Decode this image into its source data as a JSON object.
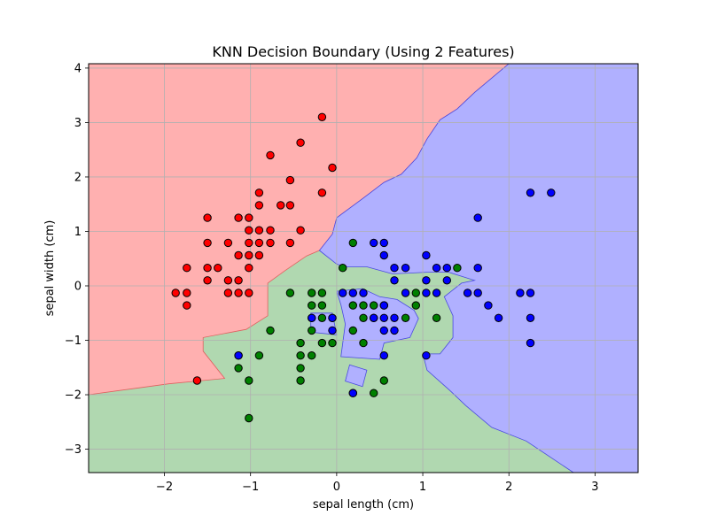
{
  "chart_data": {
    "type": "scatter",
    "title": "KNN Decision Boundary (Using 2 Features)",
    "xlabel": "sepal length (cm)",
    "ylabel": "sepal width (cm)",
    "xlim": [
      -2.88,
      3.5
    ],
    "ylim": [
      -3.43,
      4.08
    ],
    "xticks": [
      -2,
      -1,
      0,
      1,
      2,
      3
    ],
    "yticks": [
      -3,
      -2,
      -1,
      0,
      1,
      2,
      3,
      4
    ],
    "grid": true,
    "region_colors": {
      "red": "#ffb0b0",
      "green": "#b0d8b0",
      "blue": "#b0b0ff"
    },
    "point_colors": {
      "red": "#ff0000",
      "green": "#008000",
      "blue": "#0000ff"
    },
    "regions": {
      "red": [
        [
          -2.88,
          4.08
        ],
        [
          2.0,
          4.08
        ],
        [
          1.6,
          3.55
        ],
        [
          1.4,
          3.25
        ],
        [
          1.2,
          3.05
        ],
        [
          1.05,
          2.7
        ],
        [
          0.93,
          2.35
        ],
        [
          0.75,
          2.05
        ],
        [
          0.55,
          1.9
        ],
        [
          0.3,
          1.6
        ],
        [
          0.0,
          1.25
        ],
        [
          -0.05,
          0.95
        ],
        [
          -0.2,
          0.65
        ],
        [
          -0.35,
          0.55
        ],
        [
          -0.6,
          0.28
        ],
        [
          -0.8,
          0.05
        ],
        [
          -0.8,
          -0.55
        ],
        [
          -1.05,
          -0.8
        ],
        [
          -1.55,
          -0.95
        ],
        [
          -1.55,
          -1.2
        ],
        [
          -1.3,
          -1.7
        ],
        [
          -1.95,
          -1.8
        ],
        [
          -2.88,
          -2.0
        ]
      ],
      "blue": [
        [
          2.0,
          4.08
        ],
        [
          3.5,
          4.08
        ],
        [
          3.5,
          -3.43
        ],
        [
          2.75,
          -3.43
        ],
        [
          2.2,
          -2.85
        ],
        [
          1.8,
          -2.6
        ],
        [
          1.5,
          -2.2
        ],
        [
          1.3,
          -1.9
        ],
        [
          1.05,
          -1.55
        ],
        [
          1.0,
          -1.25
        ],
        [
          1.2,
          -1.25
        ],
        [
          1.35,
          -0.95
        ],
        [
          1.35,
          -0.55
        ],
        [
          1.25,
          -0.2
        ],
        [
          1.45,
          0.05
        ],
        [
          1.6,
          0.1
        ],
        [
          1.3,
          0.25
        ],
        [
          1.05,
          0.25
        ],
        [
          0.65,
          0.22
        ],
        [
          0.35,
          0.35
        ],
        [
          0.1,
          0.35
        ],
        [
          0.0,
          0.4
        ],
        [
          -0.2,
          0.65
        ],
        [
          -0.05,
          0.95
        ],
        [
          0.0,
          1.25
        ],
        [
          0.3,
          1.6
        ],
        [
          0.55,
          1.9
        ],
        [
          0.75,
          2.05
        ],
        [
          0.93,
          2.35
        ],
        [
          1.05,
          2.7
        ],
        [
          1.2,
          3.05
        ],
        [
          1.4,
          3.25
        ],
        [
          1.6,
          3.55
        ]
      ],
      "blue_islands": [
        [
          [
            0.0,
            -0.1
          ],
          [
            0.3,
            -0.05
          ],
          [
            0.5,
            -0.2
          ],
          [
            0.7,
            -0.25
          ],
          [
            0.9,
            -0.45
          ],
          [
            0.95,
            -0.6
          ],
          [
            0.85,
            -0.95
          ],
          [
            0.55,
            -1.05
          ],
          [
            0.5,
            -1.35
          ],
          [
            0.05,
            -1.3
          ],
          [
            0.1,
            -0.7
          ],
          [
            0.05,
            -0.35
          ]
        ],
        [
          [
            -0.3,
            -0.5
          ],
          [
            -0.05,
            -0.5
          ],
          [
            0.0,
            -0.9
          ],
          [
            -0.3,
            -0.85
          ]
        ],
        [
          [
            0.15,
            -1.45
          ],
          [
            0.35,
            -1.55
          ],
          [
            0.3,
            -1.85
          ],
          [
            0.1,
            -1.75
          ]
        ]
      ]
    },
    "series": [
      {
        "color": "red",
        "points": [
          [
            -0.17,
            3.1
          ],
          [
            -0.42,
            2.63
          ],
          [
            -0.05,
            2.17
          ],
          [
            -0.77,
            2.4
          ],
          [
            -0.54,
            1.94
          ],
          [
            -0.9,
            1.71
          ],
          [
            -0.17,
            1.71
          ],
          [
            -1.5,
            1.25
          ],
          [
            -1.14,
            1.25
          ],
          [
            -1.02,
            1.25
          ],
          [
            -0.9,
            1.48
          ],
          [
            -0.65,
            1.48
          ],
          [
            -0.54,
            1.48
          ],
          [
            -1.02,
            1.02
          ],
          [
            -0.9,
            1.02
          ],
          [
            -0.77,
            1.02
          ],
          [
            -0.42,
            1.02
          ],
          [
            -1.5,
            0.79
          ],
          [
            -1.26,
            0.79
          ],
          [
            -1.02,
            0.79
          ],
          [
            -0.9,
            0.79
          ],
          [
            -0.77,
            0.79
          ],
          [
            -0.54,
            0.79
          ],
          [
            -1.14,
            0.56
          ],
          [
            -1.02,
            0.56
          ],
          [
            -0.9,
            0.56
          ],
          [
            -1.74,
            0.33
          ],
          [
            -1.5,
            0.33
          ],
          [
            -1.38,
            0.33
          ],
          [
            -1.02,
            0.33
          ],
          [
            -1.5,
            0.1
          ],
          [
            -1.26,
            0.1
          ],
          [
            -1.14,
            0.1
          ],
          [
            -1.87,
            -0.13
          ],
          [
            -1.74,
            -0.13
          ],
          [
            -1.26,
            -0.13
          ],
          [
            -1.14,
            -0.13
          ],
          [
            -1.02,
            -0.13
          ],
          [
            -1.74,
            -0.36
          ],
          [
            -1.62,
            -1.74
          ]
        ]
      },
      {
        "color": "green",
        "points": [
          [
            0.19,
            0.79
          ],
          [
            0.07,
            0.33
          ],
          [
            1.4,
            0.33
          ],
          [
            -0.54,
            -0.13
          ],
          [
            -0.29,
            -0.13
          ],
          [
            -0.17,
            -0.13
          ],
          [
            0.19,
            -0.36
          ],
          [
            0.31,
            -0.36
          ],
          [
            0.43,
            -0.36
          ],
          [
            0.55,
            -0.36
          ],
          [
            0.92,
            -0.13
          ],
          [
            0.92,
            -0.36
          ],
          [
            -0.29,
            -0.36
          ],
          [
            -0.17,
            -0.36
          ],
          [
            -0.17,
            -0.59
          ],
          [
            0.31,
            -0.59
          ],
          [
            0.43,
            -0.59
          ],
          [
            0.8,
            -0.59
          ],
          [
            1.16,
            -0.59
          ],
          [
            -0.29,
            -0.59
          ],
          [
            -0.05,
            -0.59
          ],
          [
            -0.77,
            -0.82
          ],
          [
            -0.29,
            -0.82
          ],
          [
            0.19,
            -0.82
          ],
          [
            -0.42,
            -1.05
          ],
          [
            -0.17,
            -1.05
          ],
          [
            -0.05,
            -1.05
          ],
          [
            0.31,
            -1.05
          ],
          [
            -1.14,
            -1.28
          ],
          [
            -0.9,
            -1.28
          ],
          [
            -0.42,
            -1.28
          ],
          [
            -0.29,
            -1.28
          ],
          [
            -1.14,
            -1.51
          ],
          [
            -0.42,
            -1.51
          ],
          [
            -1.02,
            -1.74
          ],
          [
            -0.42,
            -1.74
          ],
          [
            0.55,
            -1.74
          ],
          [
            0.19,
            -1.97
          ],
          [
            0.43,
            -1.97
          ],
          [
            -1.02,
            -2.43
          ]
        ]
      },
      {
        "color": "blue",
        "points": [
          [
            2.25,
            1.71
          ],
          [
            2.49,
            1.71
          ],
          [
            1.64,
            1.25
          ],
          [
            0.43,
            0.79
          ],
          [
            0.55,
            0.79
          ],
          [
            0.55,
            0.56
          ],
          [
            1.04,
            0.56
          ],
          [
            0.67,
            0.33
          ],
          [
            0.8,
            0.33
          ],
          [
            1.16,
            0.33
          ],
          [
            1.28,
            0.33
          ],
          [
            1.64,
            0.33
          ],
          [
            0.67,
            0.1
          ],
          [
            1.04,
            0.1
          ],
          [
            1.28,
            0.1
          ],
          [
            0.07,
            -0.13
          ],
          [
            0.19,
            -0.13
          ],
          [
            0.31,
            -0.13
          ],
          [
            0.8,
            -0.13
          ],
          [
            1.04,
            -0.13
          ],
          [
            1.16,
            -0.13
          ],
          [
            1.52,
            -0.13
          ],
          [
            1.64,
            -0.13
          ],
          [
            2.13,
            -0.13
          ],
          [
            2.25,
            -0.13
          ],
          [
            1.76,
            -0.36
          ],
          [
            0.55,
            -0.36
          ],
          [
            -0.29,
            -0.59
          ],
          [
            -0.05,
            -0.59
          ],
          [
            0.43,
            -0.59
          ],
          [
            0.55,
            -0.59
          ],
          [
            0.67,
            -0.59
          ],
          [
            1.88,
            -0.59
          ],
          [
            2.25,
            -0.59
          ],
          [
            -0.05,
            -0.82
          ],
          [
            0.55,
            -0.82
          ],
          [
            0.67,
            -0.82
          ],
          [
            2.25,
            -1.05
          ],
          [
            -1.14,
            -1.28
          ],
          [
            0.55,
            -1.28
          ],
          [
            1.04,
            -1.28
          ],
          [
            0.19,
            -1.97
          ]
        ]
      }
    ]
  }
}
